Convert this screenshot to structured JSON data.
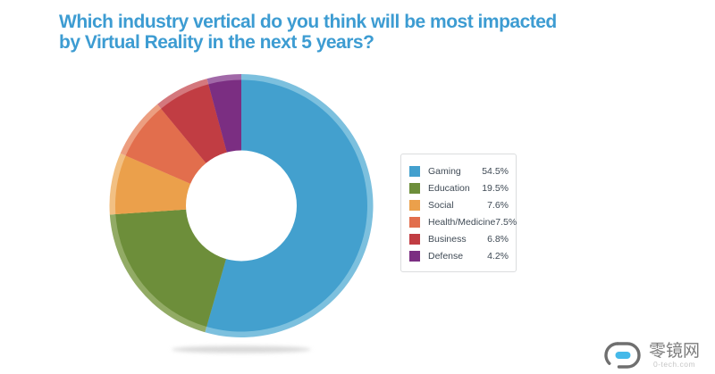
{
  "title": {
    "lines": [
      "Which industry vertical do you think will be most impacted",
      "by Virtual Reality in the next 5 years?"
    ],
    "color": "#3D9CD2"
  },
  "chart_data": {
    "type": "pie",
    "subtype": "donut",
    "title": "Which industry vertical do you think will be most impacted by Virtual Reality in the next 5 years?",
    "legend_position": "right",
    "start_angle_deg": 0,
    "direction": "clockwise",
    "hole_ratio": 0.42,
    "series": [
      {
        "label": "Gaming",
        "value": 54.5,
        "value_label": "54.5%",
        "color": "#43A0CE",
        "rim_color": "#7CC0DE"
      },
      {
        "label": "Education",
        "value": 19.5,
        "value_label": "19.5%",
        "color": "#6D8E3A",
        "rim_color": "#92AB65"
      },
      {
        "label": "Social",
        "value": 7.6,
        "value_label": "7.6%",
        "color": "#EBA04B",
        "rim_color": "#F2C083"
      },
      {
        "label": "Health/Medicine",
        "value": 7.5,
        "value_label": "7.5%",
        "color": "#E26E4D",
        "rim_color": "#EC9E80"
      },
      {
        "label": "Business",
        "value": 6.8,
        "value_label": "6.8%",
        "color": "#C13D43",
        "rim_color": "#D4787D"
      },
      {
        "label": "Defense",
        "value": 4.2,
        "value_label": "4.2%",
        "color": "#7B2E82",
        "rim_color": "#A169A8"
      }
    ]
  },
  "logo": {
    "brand_text": "零镜网",
    "domain_text": "0-tech.com",
    "accent_color": "#45B9E9",
    "outline_color": "#6F6F6F"
  }
}
